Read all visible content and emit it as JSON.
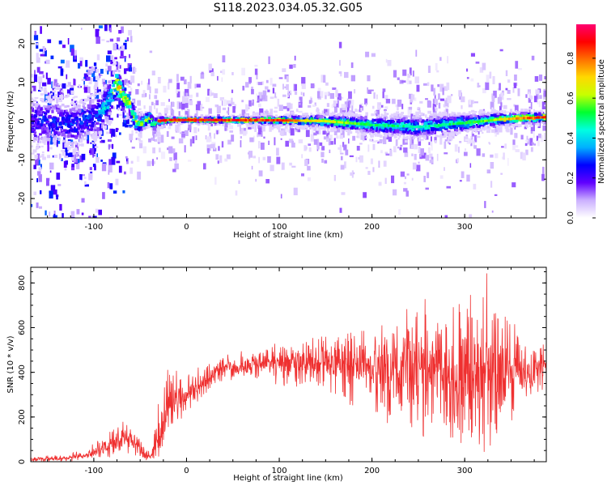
{
  "figure_title": "S118.2023.034.05.32.G05",
  "chart_data": [
    {
      "type": "heatmap",
      "xlabel": "Height of straight line (km)",
      "ylabel": "Frequency (Hz)",
      "xlim": [
        -168,
        388
      ],
      "ylim": [
        -25,
        25
      ],
      "x_ticks": [
        -100,
        0,
        100,
        200,
        300
      ],
      "y_ticks": [
        -20,
        -10,
        0,
        10,
        20
      ],
      "colorbar": {
        "label": "Normalized spectral amplitude",
        "range": [
          0,
          0.97
        ],
        "ticks": [
          0.0,
          0.2,
          0.4,
          0.6,
          0.8
        ],
        "colormap": [
          "#ffffff",
          "#cbb0ff",
          "#6000ff",
          "#0000ff",
          "#00b0ff",
          "#00ffe0",
          "#00ff30",
          "#c8ff00",
          "#ffd800",
          "#ff7000",
          "#ff0000",
          "#ff0070"
        ]
      },
      "ridge": [
        [
          -168,
          0
        ],
        [
          -140,
          0
        ],
        [
          -120,
          -1
        ],
        [
          -100,
          1
        ],
        [
          -90,
          3
        ],
        [
          -80,
          7
        ],
        [
          -75,
          10
        ],
        [
          -70,
          7
        ],
        [
          -62,
          5
        ],
        [
          -55,
          0
        ],
        [
          -50,
          -1
        ],
        [
          -45,
          0
        ],
        [
          -40,
          1
        ],
        [
          -35,
          -1
        ],
        [
          -30,
          0
        ],
        [
          -20,
          0.3
        ],
        [
          0,
          0.3
        ],
        [
          100,
          0.2
        ],
        [
          150,
          0
        ],
        [
          200,
          -1
        ],
        [
          250,
          -1.5
        ],
        [
          300,
          -0.5
        ],
        [
          340,
          0.5
        ],
        [
          388,
          1
        ]
      ],
      "band_halfwidth": [
        [
          -168,
          6
        ],
        [
          -100,
          5
        ],
        [
          -70,
          4
        ],
        [
          -50,
          2
        ],
        [
          -20,
          0.5
        ],
        [
          50,
          0.6
        ],
        [
          120,
          1
        ],
        [
          180,
          1.8
        ],
        [
          250,
          2.5
        ],
        [
          300,
          2
        ],
        [
          340,
          1.5
        ],
        [
          388,
          1
        ]
      ],
      "ridge_amplitude": [
        [
          -168,
          0.3
        ],
        [
          -100,
          0.35
        ],
        [
          -80,
          0.6
        ],
        [
          -70,
          0.8
        ],
        [
          -50,
          0.65
        ],
        [
          -30,
          0.9
        ],
        [
          0,
          0.97
        ],
        [
          100,
          0.9
        ],
        [
          130,
          0.75
        ],
        [
          200,
          0.55
        ],
        [
          260,
          0.5
        ],
        [
          320,
          0.6
        ],
        [
          360,
          0.85
        ],
        [
          388,
          0.9
        ]
      ]
    },
    {
      "type": "line",
      "xlabel": "Height of straight line (km)",
      "ylabel": "SNR (10 * v/v)",
      "xlim": [
        -168,
        388
      ],
      "ylim": [
        0,
        870
      ],
      "x_ticks": [
        -100,
        0,
        100,
        200,
        300
      ],
      "y_ticks": [
        0,
        200,
        400,
        600,
        800
      ],
      "color": "#ef3030",
      "envelope": {
        "x": [
          -168,
          -130,
          -100,
          -80,
          -65,
          -55,
          -45,
          -38,
          -30,
          -20,
          -10,
          0,
          10,
          20,
          30,
          40,
          60,
          80,
          100,
          120,
          140,
          160,
          180,
          200,
          220,
          240,
          250,
          260,
          280,
          300,
          310,
          320,
          325,
          330,
          340,
          350,
          360,
          370,
          380,
          388
        ],
        "mean": [
          10,
          15,
          40,
          80,
          120,
          80,
          30,
          15,
          120,
          240,
          270,
          290,
          330,
          360,
          400,
          420,
          430,
          440,
          440,
          450,
          440,
          440,
          420,
          420,
          420,
          410,
          410,
          420,
          410,
          400,
          400,
          410,
          390,
          400,
          400,
          410,
          400,
          390,
          420,
          430
        ],
        "upper": [
          25,
          30,
          80,
          150,
          210,
          140,
          60,
          50,
          300,
          420,
          410,
          400,
          420,
          440,
          460,
          480,
          500,
          520,
          540,
          540,
          560,
          560,
          580,
          620,
          660,
          690,
          670,
          750,
          720,
          740,
          860,
          870,
          860,
          840,
          720,
          650,
          560,
          540,
          530,
          520
        ],
        "lower": [
          0,
          0,
          10,
          20,
          40,
          20,
          5,
          2,
          20,
          150,
          180,
          210,
          250,
          300,
          340,
          360,
          370,
          360,
          340,
          330,
          300,
          280,
          240,
          200,
          160,
          140,
          80,
          120,
          80,
          60,
          20,
          40,
          60,
          80,
          120,
          160,
          200,
          260,
          300,
          320
        ]
      }
    }
  ]
}
